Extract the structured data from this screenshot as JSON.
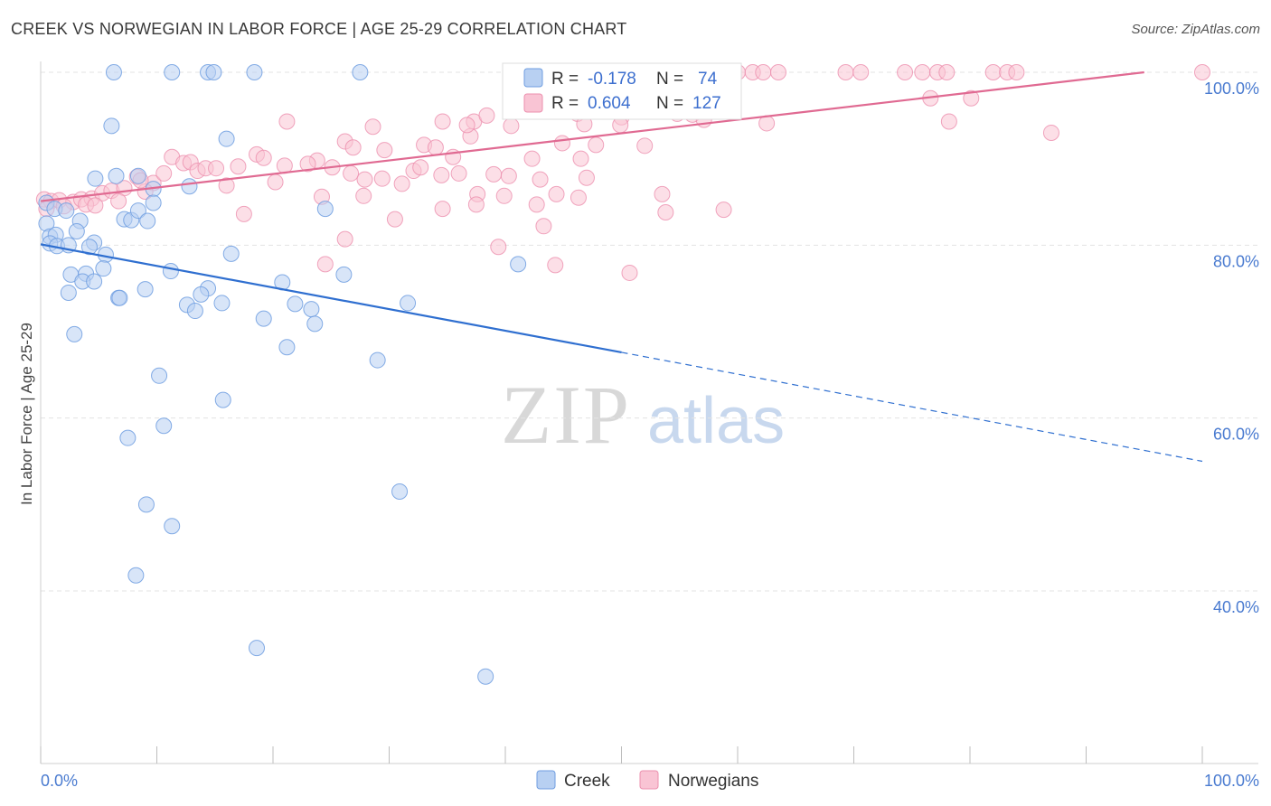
{
  "header": {
    "title": "CREEK VS NORWEGIAN IN LABOR FORCE | AGE 25-29 CORRELATION CHART",
    "source": "Source: ZipAtlas.com"
  },
  "watermark": {
    "zip": "ZIP",
    "atlas": "atlas"
  },
  "legend": {
    "creek": {
      "r_label": "R = ",
      "r_value": "-0.178",
      "n_label": "N = ",
      "n_value": "74"
    },
    "norwegians": {
      "r_label": "R = ",
      "r_value": "0.604",
      "n_label": "N = ",
      "n_value": "127"
    }
  },
  "bottom_legend": {
    "creek": "Creek",
    "norwegians": "Norwegians"
  },
  "colors": {
    "creek_fill": "#b8d0f2",
    "creek_stroke": "#6f9de0",
    "creek_line": "#2f6fd0",
    "norw_fill": "#f9c4d4",
    "norw_stroke": "#ec8fae",
    "norw_line": "#e06a92",
    "tick": "#4a7bd0",
    "grid": "#e3e3e3"
  },
  "chart_data": {
    "type": "scatter",
    "title": "CREEK VS NORWEGIAN IN LABOR FORCE | AGE 25-29 CORRELATION CHART",
    "xlabel": "",
    "ylabel": "In Labor Force | Age 25-29",
    "xlim": [
      0,
      100
    ],
    "ylim": [
      20,
      102
    ],
    "x_tick_labels": [
      "0.0%",
      "100.0%"
    ],
    "y_ticks": [
      40,
      60,
      80,
      100
    ],
    "y_tick_labels": [
      "40.0%",
      "60.0%",
      "80.0%",
      "100.0%"
    ],
    "grid": true,
    "legend_position": "top-center",
    "series": [
      {
        "name": "Creek",
        "R": -0.178,
        "N": 74,
        "trend": {
          "x0": 0,
          "y0": 80.1,
          "x1": 50,
          "y1": 67.6,
          "dashed_to_x": 100,
          "dashed_to_y": 55.0
        },
        "points": [
          [
            6.3,
            100
          ],
          [
            11.3,
            100
          ],
          [
            14.4,
            100
          ],
          [
            14.9,
            100
          ],
          [
            18.4,
            100
          ],
          [
            27.5,
            100
          ],
          [
            6.1,
            93.8
          ],
          [
            16.0,
            92.3
          ],
          [
            4.7,
            87.7
          ],
          [
            6.5,
            88.0
          ],
          [
            8.4,
            88.0
          ],
          [
            9.7,
            86.5
          ],
          [
            12.8,
            86.8
          ],
          [
            0.5,
            84.9
          ],
          [
            1.2,
            84.2
          ],
          [
            2.2,
            84.0
          ],
          [
            3.4,
            82.8
          ],
          [
            7.2,
            83.0
          ],
          [
            7.8,
            82.9
          ],
          [
            8.4,
            84.0
          ],
          [
            9.2,
            82.8
          ],
          [
            9.7,
            84.9
          ],
          [
            24.5,
            84.2
          ],
          [
            0.5,
            82.5
          ],
          [
            0.8,
            81.0
          ],
          [
            1.3,
            81.2
          ],
          [
            3.1,
            81.6
          ],
          [
            4.6,
            80.3
          ],
          [
            4.2,
            79.8
          ],
          [
            0.8,
            80.2
          ],
          [
            1.4,
            79.9
          ],
          [
            2.4,
            80.0
          ],
          [
            5.6,
            78.9
          ],
          [
            16.4,
            79.0
          ],
          [
            5.4,
            77.3
          ],
          [
            2.6,
            76.6
          ],
          [
            3.9,
            76.7
          ],
          [
            11.2,
            77.0
          ],
          [
            3.6,
            75.8
          ],
          [
            4.6,
            75.8
          ],
          [
            26.1,
            76.6
          ],
          [
            41.1,
            77.8
          ],
          [
            2.4,
            74.5
          ],
          [
            9.0,
            74.9
          ],
          [
            14.4,
            75.0
          ],
          [
            20.8,
            75.7
          ],
          [
            6.7,
            73.9
          ],
          [
            6.8,
            73.9
          ],
          [
            12.6,
            73.1
          ],
          [
            13.3,
            72.4
          ],
          [
            13.8,
            74.3
          ],
          [
            15.6,
            73.3
          ],
          [
            21.9,
            73.2
          ],
          [
            23.3,
            72.6
          ],
          [
            31.6,
            73.3
          ],
          [
            19.2,
            71.5
          ],
          [
            23.6,
            70.9
          ],
          [
            2.9,
            69.7
          ],
          [
            21.2,
            68.2
          ],
          [
            29.0,
            66.7
          ],
          [
            10.2,
            64.9
          ],
          [
            15.7,
            62.1
          ],
          [
            10.6,
            59.1
          ],
          [
            7.5,
            57.7
          ],
          [
            9.1,
            50.0
          ],
          [
            11.3,
            47.5
          ],
          [
            30.9,
            51.5
          ],
          [
            8.2,
            41.8
          ],
          [
            18.6,
            33.4
          ],
          [
            38.3,
            30.1
          ]
        ]
      },
      {
        "name": "Norwegians",
        "R": 0.604,
        "N": 127,
        "trend": {
          "x0": 0,
          "y0": 85.1,
          "x1": 95,
          "y1": 100
        },
        "points": [
          [
            56.8,
            100
          ],
          [
            60.0,
            100
          ],
          [
            61.3,
            100
          ],
          [
            62.2,
            100
          ],
          [
            63.5,
            100
          ],
          [
            69.3,
            100
          ],
          [
            70.6,
            100
          ],
          [
            74.4,
            100
          ],
          [
            75.9,
            100
          ],
          [
            77.2,
            100
          ],
          [
            78.0,
            100
          ],
          [
            82.0,
            100
          ],
          [
            83.2,
            100
          ],
          [
            84.0,
            100
          ],
          [
            100,
            100
          ],
          [
            53.1,
            97.5
          ],
          [
            55.9,
            97.0
          ],
          [
            54.8,
            95.2
          ],
          [
            76.6,
            97.0
          ],
          [
            80.1,
            97.0
          ],
          [
            21.2,
            94.3
          ],
          [
            28.6,
            93.7
          ],
          [
            34.6,
            94.3
          ],
          [
            37.3,
            94.3
          ],
          [
            38.4,
            95.0
          ],
          [
            44.0,
            95.5
          ],
          [
            46.2,
            95.2
          ],
          [
            46.8,
            94.0
          ],
          [
            50.0,
            94.8
          ],
          [
            56.1,
            95.1
          ],
          [
            57.1,
            94.5
          ],
          [
            62.5,
            94.1
          ],
          [
            78.2,
            94.3
          ],
          [
            87.0,
            93.0
          ],
          [
            26.2,
            92.0
          ],
          [
            33.0,
            91.6
          ],
          [
            37.0,
            92.6
          ],
          [
            44.9,
            91.8
          ],
          [
            47.8,
            91.6
          ],
          [
            52.0,
            91.5
          ],
          [
            11.3,
            90.2
          ],
          [
            12.3,
            89.5
          ],
          [
            12.9,
            89.6
          ],
          [
            18.6,
            90.5
          ],
          [
            19.2,
            90.1
          ],
          [
            23.8,
            89.8
          ],
          [
            26.9,
            91.3
          ],
          [
            29.6,
            91.0
          ],
          [
            34.0,
            91.3
          ],
          [
            35.5,
            90.2
          ],
          [
            42.3,
            90.0
          ],
          [
            46.5,
            90.0
          ],
          [
            49.9,
            93.9
          ],
          [
            8.3,
            87.9
          ],
          [
            9.7,
            87.2
          ],
          [
            10.6,
            88.3
          ],
          [
            13.5,
            88.6
          ],
          [
            14.2,
            88.9
          ],
          [
            15.1,
            88.9
          ],
          [
            17.0,
            89.1
          ],
          [
            21.0,
            89.2
          ],
          [
            23.0,
            89.4
          ],
          [
            26.7,
            88.3
          ],
          [
            27.9,
            87.6
          ],
          [
            29.4,
            87.7
          ],
          [
            32.1,
            88.6
          ],
          [
            36.0,
            88.3
          ],
          [
            39.0,
            88.2
          ],
          [
            40.3,
            88.0
          ],
          [
            0.3,
            85.3
          ],
          [
            0.9,
            85.1
          ],
          [
            1.6,
            85.2
          ],
          [
            2.8,
            85.0
          ],
          [
            3.5,
            85.3
          ],
          [
            4.4,
            85.4
          ],
          [
            5.3,
            86.0
          ],
          [
            6.1,
            86.3
          ],
          [
            7.2,
            86.6
          ],
          [
            9.0,
            86.2
          ],
          [
            16.0,
            86.9
          ],
          [
            20.2,
            87.3
          ],
          [
            24.2,
            85.6
          ],
          [
            27.8,
            85.7
          ],
          [
            31.1,
            87.1
          ],
          [
            37.6,
            85.9
          ],
          [
            39.9,
            85.7
          ],
          [
            44.4,
            85.9
          ],
          [
            46.3,
            85.5
          ],
          [
            53.5,
            85.9
          ],
          [
            0.5,
            84.2
          ],
          [
            2.0,
            84.5
          ],
          [
            3.9,
            84.7
          ],
          [
            4.7,
            84.6
          ],
          [
            6.7,
            85.1
          ],
          [
            17.5,
            83.6
          ],
          [
            30.5,
            83.0
          ],
          [
            34.6,
            84.2
          ],
          [
            37.5,
            84.7
          ],
          [
            42.7,
            84.7
          ],
          [
            53.8,
            83.8
          ],
          [
            58.8,
            84.1
          ],
          [
            43.3,
            82.2
          ],
          [
            26.2,
            80.7
          ],
          [
            39.4,
            79.8
          ],
          [
            24.5,
            77.8
          ],
          [
            44.3,
            77.7
          ],
          [
            50.7,
            76.8
          ],
          [
            34.5,
            88.1
          ],
          [
            43.0,
            87.6
          ],
          [
            32.7,
            89.0
          ],
          [
            8.6,
            87.5
          ],
          [
            25.1,
            89.0
          ],
          [
            40.5,
            93.8
          ],
          [
            36.7,
            93.9
          ],
          [
            47.0,
            87.8
          ]
        ]
      }
    ]
  }
}
